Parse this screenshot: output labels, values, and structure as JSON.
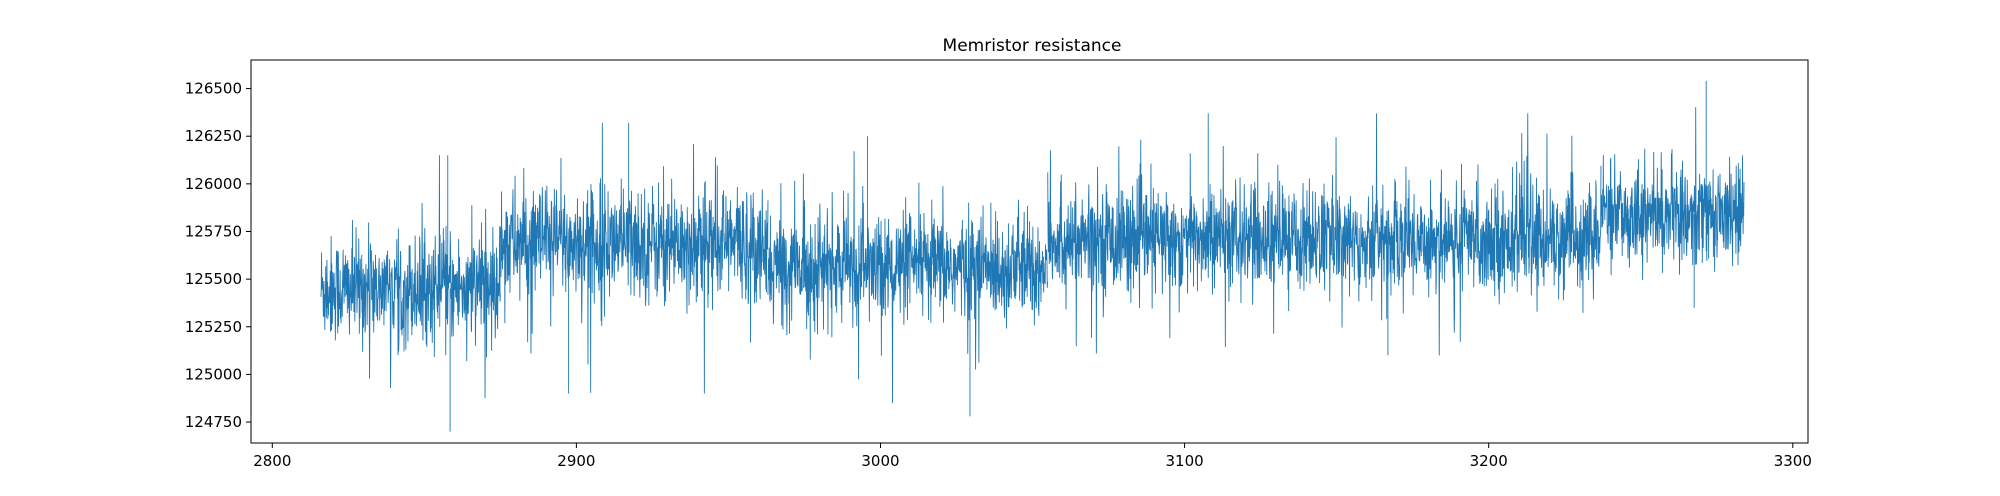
{
  "chart_data": {
    "type": "line",
    "title": "Memristor resistance",
    "xlabel": "",
    "ylabel": "",
    "xlim": [
      2793,
      3305
    ],
    "ylim": [
      124640,
      126650
    ],
    "xticks": [
      2800,
      2900,
      3000,
      3100,
      3200,
      3300
    ],
    "yticks": [
      124750,
      125000,
      125250,
      125500,
      125750,
      126000,
      126250,
      126500
    ],
    "grid": false,
    "legend": "none",
    "line_color": "#1f77b4",
    "series": [
      {
        "x_range": [
          2816,
          3284
        ],
        "segments": [
          {
            "x": [
              2816,
              2875
            ],
            "center": 125450,
            "noise_band": [
              125150,
              125750
            ],
            "extremes": [
              124700,
              126150
            ]
          },
          {
            "x": [
              2875,
              2963
            ],
            "center": 125690,
            "noise_band": [
              125350,
              126000
            ],
            "extremes": [
              124900,
              126320
            ]
          },
          {
            "x": [
              2963,
              3055
            ],
            "center": 125560,
            "noise_band": [
              125250,
              125850
            ],
            "extremes": [
              124780,
              126250
            ]
          },
          {
            "x": [
              3055,
              3237
            ],
            "center": 125710,
            "noise_band": [
              125400,
              126000
            ],
            "extremes": [
              125100,
              126370
            ]
          },
          {
            "x": [
              3237,
              3284
            ],
            "center": 125840,
            "noise_band": [
              125550,
              126100
            ],
            "extremes": [
              125350,
              126540
            ]
          }
        ]
      }
    ]
  }
}
